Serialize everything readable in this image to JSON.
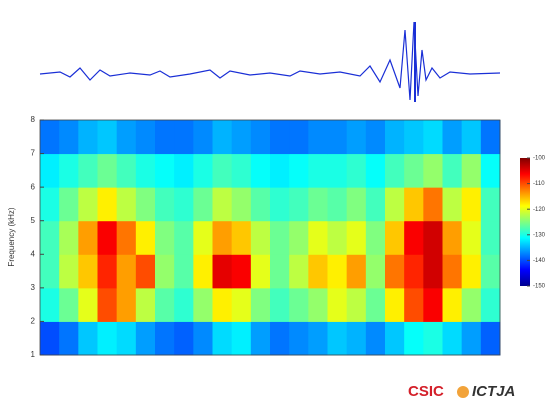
{
  "chart_data": {
    "type": "heatmap",
    "y_label": "Frequency (kHz)",
    "ylim": [
      1,
      8
    ],
    "yticks": [
      1,
      2,
      3,
      4,
      5,
      6,
      7,
      8
    ],
    "zlim": [
      -150,
      -100
    ],
    "zticks": [
      -100,
      -110,
      -120,
      -130,
      -140,
      -150
    ],
    "colormap": "jet",
    "values": [
      [
        -140,
        -138,
        -134,
        -132,
        -133,
        -136,
        -138,
        -139,
        -137,
        -133,
        -132,
        -136,
        -138,
        -137,
        -136,
        -134,
        -135,
        -137,
        -134,
        -131,
        -130,
        -133,
        -136,
        -139
      ],
      [
        -130,
        -126,
        -120,
        -110,
        -114,
        -122,
        -127,
        -129,
        -124,
        -118,
        -120,
        -125,
        -128,
        -126,
        -124,
        -120,
        -122,
        -126,
        -118,
        -110,
        -106,
        -118,
        -124,
        -129
      ],
      [
        -128,
        -122,
        -116,
        -108,
        -114,
        -110,
        -124,
        -127,
        -118,
        -105,
        -106,
        -120,
        -126,
        -122,
        -116,
        -118,
        -114,
        -124,
        -112,
        -108,
        -104,
        -112,
        -118,
        -127
      ],
      [
        -128,
        -123,
        -114,
        -106,
        -112,
        -118,
        -125,
        -127,
        -120,
        -114,
        -116,
        -122,
        -126,
        -124,
        -120,
        -122,
        -120,
        -125,
        -116,
        -106,
        -104,
        -114,
        -120,
        -128
      ],
      [
        -130,
        -126,
        -122,
        -118,
        -122,
        -125,
        -128,
        -129,
        -126,
        -122,
        -124,
        -127,
        -129,
        -128,
        -126,
        -127,
        -125,
        -128,
        -122,
        -116,
        -112,
        -122,
        -118,
        -128
      ],
      [
        -132,
        -130,
        -128,
        -126,
        -128,
        -130,
        -131,
        -132,
        -130,
        -128,
        -129,
        -131,
        -132,
        -131,
        -130,
        -130,
        -129,
        -131,
        -128,
        -126,
        -124,
        -128,
        -124,
        -131
      ],
      [
        -138,
        -137,
        -135,
        -134,
        -136,
        -137,
        -138,
        -138,
        -137,
        -135,
        -136,
        -137,
        -138,
        -138,
        -137,
        -137,
        -136,
        -137,
        -135,
        -134,
        -133,
        -136,
        -134,
        -138
      ]
    ],
    "annotations": [
      "CSIC",
      "ICTJA"
    ]
  }
}
